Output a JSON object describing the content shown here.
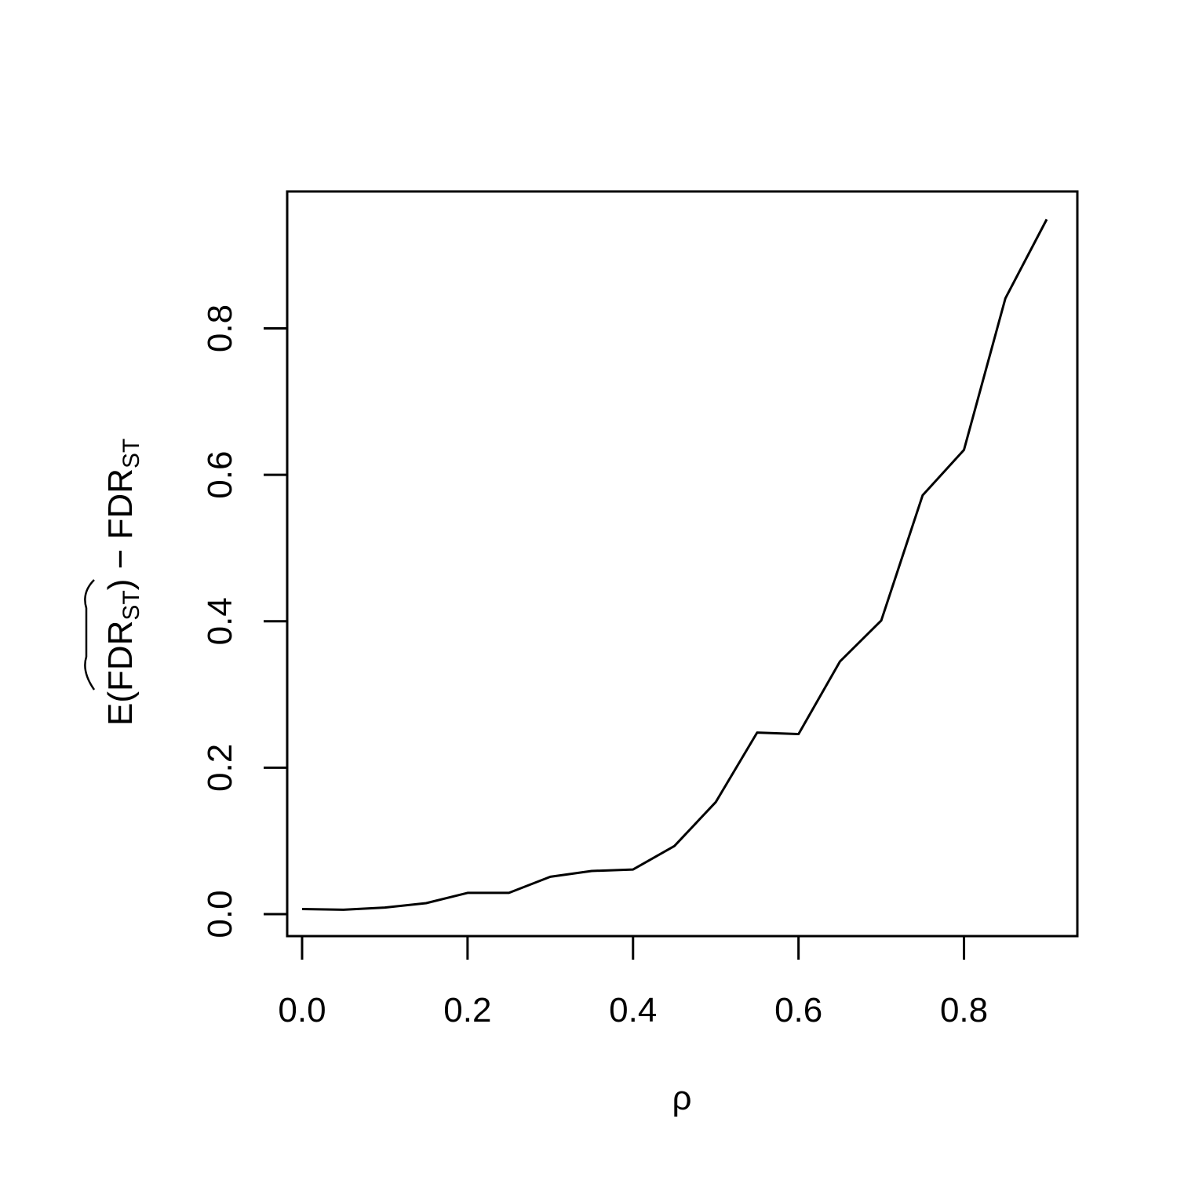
{
  "chart_data": {
    "type": "line",
    "title": "",
    "xlabel": "ρ",
    "ylabel": {
      "prefix": "E(",
      "hat": "FDR",
      "hat_sub": "ST",
      "middle": ") − FDR",
      "sub": "ST"
    },
    "xlim": [
      -0.018,
      0.937
    ],
    "ylim": [
      -0.03,
      0.987
    ],
    "x_ticks": [
      0.0,
      0.2,
      0.4,
      0.6,
      0.8
    ],
    "x_tick_labels": [
      "0.0",
      "0.2",
      "0.4",
      "0.6",
      "0.8"
    ],
    "y_ticks": [
      0.0,
      0.2,
      0.4,
      0.6,
      0.8
    ],
    "y_tick_labels": [
      "0.0",
      "0.2",
      "0.4",
      "0.6",
      "0.8"
    ],
    "grid": false,
    "legend": "none",
    "color": "#000000",
    "series": [
      {
        "x": [
          0.0,
          0.05,
          0.1,
          0.15,
          0.2,
          0.25,
          0.3,
          0.35,
          0.4,
          0.45,
          0.5,
          0.55,
          0.6,
          0.65,
          0.7,
          0.75,
          0.8,
          0.85,
          0.9
        ],
        "values": [
          0.007,
          0.006,
          0.009,
          0.015,
          0.029,
          0.029,
          0.051,
          0.059,
          0.061,
          0.093,
          0.153,
          0.248,
          0.246,
          0.345,
          0.401,
          0.572,
          0.634,
          0.841,
          0.949
        ]
      }
    ]
  }
}
